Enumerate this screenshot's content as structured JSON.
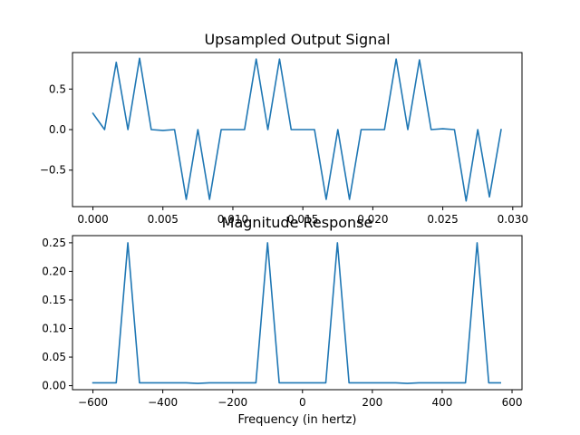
{
  "chart_data": [
    {
      "type": "line",
      "title": "Upsampled Output Signal",
      "xlabel": "",
      "ylabel": "",
      "xlim": [
        -0.00146,
        0.03066
      ],
      "ylim": [
        -0.95,
        0.95
      ],
      "xticks": [
        0.0,
        0.005,
        0.01,
        0.015,
        0.02,
        0.025,
        0.03
      ],
      "xtick_labels": [
        "0.000",
        "0.005",
        "0.010",
        "0.015",
        "0.020",
        "0.025",
        "0.030"
      ],
      "yticks": [
        0.5,
        0.0,
        -0.5
      ],
      "ytick_labels": [
        "0.5",
        "0.0",
        "−0.5"
      ],
      "grid": false,
      "series": [
        {
          "color": "#1f77b4",
          "x": [
            0.0,
            0.000833,
            0.001667,
            0.0025,
            0.003333,
            0.004167,
            0.005,
            0.005833,
            0.006667,
            0.0075,
            0.008333,
            0.009167,
            0.01,
            0.010833,
            0.011667,
            0.0125,
            0.013333,
            0.014167,
            0.015,
            0.015833,
            0.016667,
            0.0175,
            0.018333,
            0.019167,
            0.02,
            0.020833,
            0.021667,
            0.0225,
            0.023333,
            0.024167,
            0.025,
            0.025833,
            0.026667,
            0.0275,
            0.028333,
            0.029167
          ],
          "values": [
            0.2,
            0.0,
            0.83,
            0.0,
            0.88,
            0.0,
            -0.01,
            0.0,
            -0.86,
            0.0,
            -0.86,
            0.0,
            0.0,
            0.0,
            0.87,
            0.0,
            0.87,
            0.0,
            0.0,
            0.0,
            -0.86,
            0.0,
            -0.86,
            0.0,
            0.0,
            0.0,
            0.87,
            0.0,
            0.86,
            0.0,
            0.01,
            0.0,
            -0.88,
            0.0,
            -0.83,
            0.0
          ]
        }
      ]
    },
    {
      "type": "line",
      "title": "Magnitude Response",
      "xlabel": "Frequency (in hertz)",
      "ylabel": "",
      "xlim": [
        -658.5,
        628.5
      ],
      "ylim": [
        -0.007,
        0.2625
      ],
      "xticks": [
        -600,
        -400,
        -200,
        0,
        200,
        400,
        600
      ],
      "xtick_labels": [
        "−600",
        "−400",
        "−200",
        "0",
        "200",
        "400",
        "600"
      ],
      "yticks": [
        0.0,
        0.05,
        0.1,
        0.15,
        0.2,
        0.25
      ],
      "ytick_labels": [
        "0.00",
        "0.05",
        "0.10",
        "0.15",
        "0.20",
        "0.25"
      ],
      "grid": false,
      "series": [
        {
          "color": "#1f77b4",
          "x": [
            -600,
            -566.7,
            -533.3,
            -500,
            -466.7,
            -433.3,
            -400,
            -366.7,
            -333.3,
            -300,
            -266.7,
            -233.3,
            -200,
            -166.7,
            -133.3,
            -100,
            -66.7,
            -33.3,
            0,
            33.3,
            66.7,
            100,
            133.3,
            166.7,
            200,
            233.3,
            266.7,
            300,
            333.3,
            366.7,
            400,
            433.3,
            466.7,
            500,
            533.3,
            566.7
          ],
          "values": [
            0.005,
            0.005,
            0.005,
            0.25,
            0.005,
            0.005,
            0.005,
            0.005,
            0.005,
            0.004,
            0.005,
            0.005,
            0.005,
            0.005,
            0.005,
            0.25,
            0.005,
            0.005,
            0.005,
            0.005,
            0.005,
            0.25,
            0.005,
            0.005,
            0.005,
            0.005,
            0.005,
            0.004,
            0.005,
            0.005,
            0.005,
            0.005,
            0.005,
            0.25,
            0.005,
            0.005
          ]
        }
      ]
    }
  ]
}
